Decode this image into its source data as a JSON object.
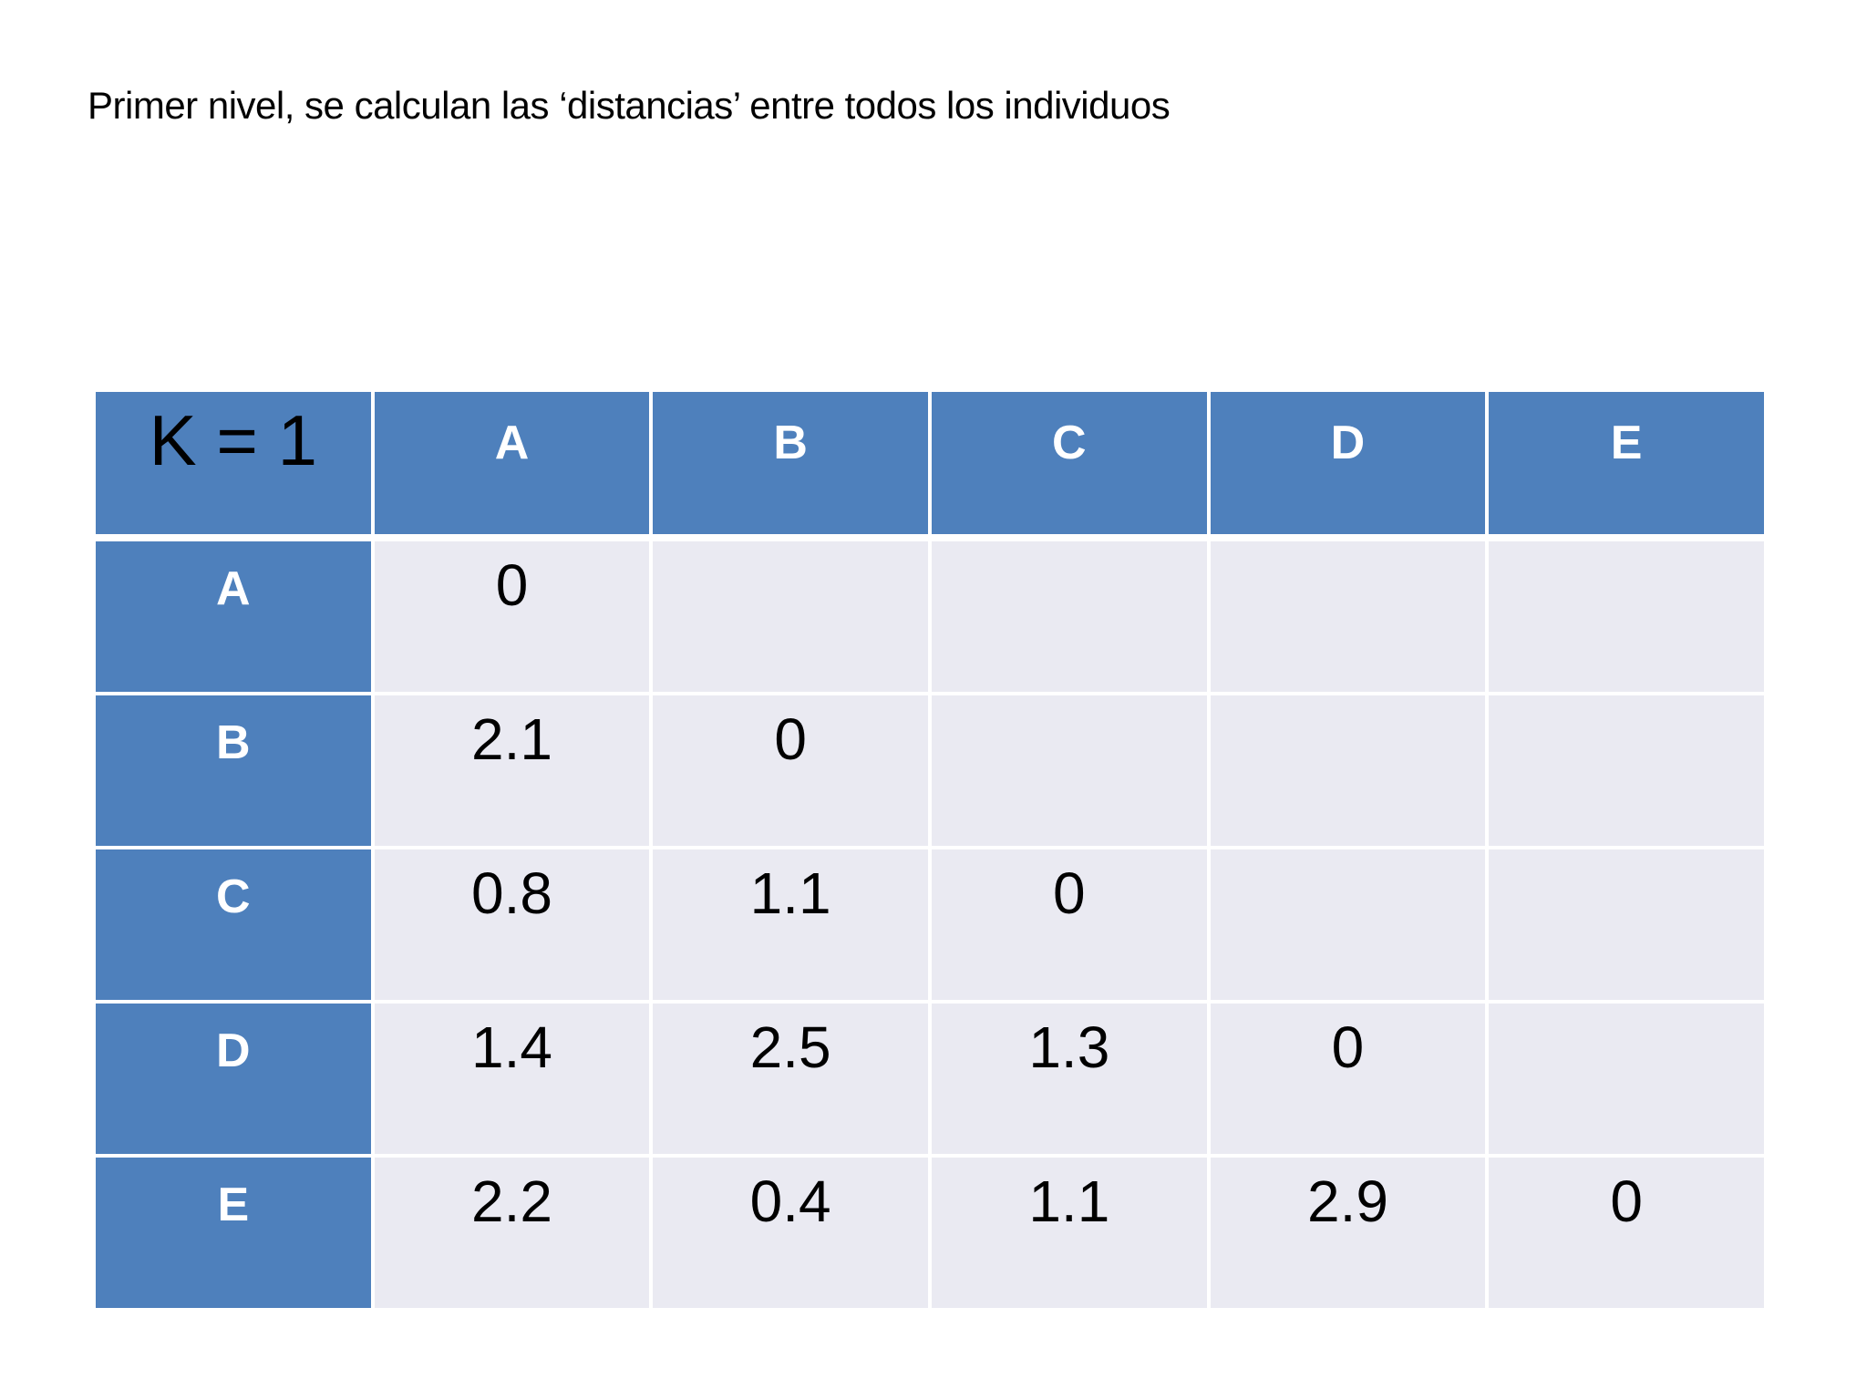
{
  "slide": {
    "title": "Primer nivel, se calculan las ‘distancias’ entre todos los individuos"
  },
  "table": {
    "corner_label": "K = 1",
    "columns": [
      "A",
      "B",
      "C",
      "D",
      "E"
    ],
    "rows": [
      {
        "label": "A",
        "values": [
          "0",
          "",
          "",
          "",
          ""
        ]
      },
      {
        "label": "B",
        "values": [
          "2.1",
          "0",
          "",
          "",
          ""
        ]
      },
      {
        "label": "C",
        "values": [
          "0.8",
          "1.1",
          "0",
          "",
          ""
        ]
      },
      {
        "label": "D",
        "values": [
          "1.4",
          "2.5",
          "1.3",
          "0",
          ""
        ]
      },
      {
        "label": "E",
        "values": [
          "2.2",
          "0.4",
          "1.1",
          "2.9",
          "0"
        ]
      }
    ]
  },
  "colors": {
    "header_blue": "#4e80bc",
    "cell_background": "#eaeaf2",
    "grid_line": "#ffffff",
    "header_text": "#ffffff",
    "value_text": "#000000"
  }
}
